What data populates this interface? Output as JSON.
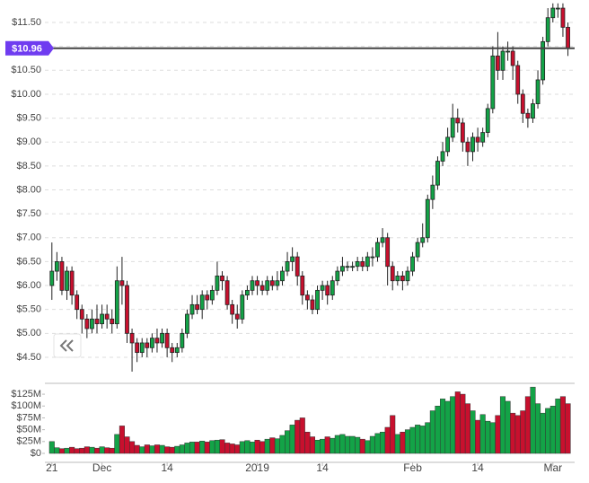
{
  "chart_data": [
    {
      "type": "candlestick",
      "up_color": "#13a347",
      "down_color": "#c8102e",
      "grid": true,
      "ylim": [
        4.18,
        11.97
      ],
      "yticks": [
        {
          "value": 4.5,
          "label": "$4.50"
        },
        {
          "value": 5,
          "label": "$5.00"
        },
        {
          "value": 5.5,
          "label": "$5.50"
        },
        {
          "value": 6,
          "label": "$6.00"
        },
        {
          "value": 6.5,
          "label": "$6.50"
        },
        {
          "value": 7,
          "label": "$7.00"
        },
        {
          "value": 7.5,
          "label": "$7.50"
        },
        {
          "value": 8,
          "label": "$8.00"
        },
        {
          "value": 8.5,
          "label": "$8.50"
        },
        {
          "value": 9,
          "label": "$9.00"
        },
        {
          "value": 9.5,
          "label": "$9.50"
        },
        {
          "value": 10,
          "label": "$10.00"
        },
        {
          "value": 10.5,
          "label": "$10.50"
        },
        {
          "value": 11,
          "label": "$11.00"
        },
        {
          "value": 11.5,
          "label": "$11.50"
        }
      ],
      "last_price": {
        "value": 10.96,
        "label": "$10.96"
      },
      "open": [
        6.0,
        6.3,
        6.5,
        5.9,
        6.3,
        5.8,
        5.5,
        5.3,
        5.1,
        5.3,
        5.2,
        5.4,
        5.3,
        5.2,
        6.1,
        6.0,
        5.0,
        4.8,
        4.6,
        4.8,
        4.7,
        4.9,
        4.8,
        5.0,
        4.7,
        4.6,
        4.7,
        5.0,
        5.4,
        5.6,
        5.5,
        5.8,
        5.7,
        5.9,
        6.2,
        6.1,
        5.6,
        5.4,
        5.3,
        5.8,
        5.9,
        6.1,
        6.0,
        5.9,
        6.1,
        6.0,
        6.1,
        6.3,
        6.5,
        6.6,
        6.2,
        5.8,
        5.7,
        5.5,
        5.9,
        6.0,
        5.8,
        6.1,
        6.3,
        6.4,
        6.4,
        6.4,
        6.5,
        6.4,
        6.6,
        6.6,
        6.9,
        7.0,
        6.4,
        6.1,
        6.2,
        6.1,
        6.3,
        6.6,
        6.9,
        7.0,
        7.8,
        8.1,
        8.6,
        8.8,
        9.1,
        9.5,
        9.4,
        9.0,
        8.8,
        9.1,
        9.0,
        9.2,
        9.7,
        10.8,
        10.5,
        10.9,
        10.9,
        10.6,
        10.0,
        9.6,
        9.5,
        9.8,
        10.3,
        11.1,
        11.6,
        11.8,
        11.8,
        11.4
      ],
      "high": [
        6.9,
        6.7,
        6.6,
        6.4,
        6.4,
        5.9,
        5.6,
        5.4,
        5.5,
        5.6,
        5.6,
        5.6,
        5.5,
        6.4,
        6.6,
        6.1,
        5.1,
        4.9,
        4.9,
        4.9,
        5.0,
        5.1,
        5.1,
        5.1,
        4.8,
        4.8,
        5.1,
        5.5,
        5.8,
        5.8,
        5.9,
        5.9,
        6.0,
        6.5,
        6.3,
        6.2,
        5.7,
        5.6,
        5.9,
        6.0,
        6.2,
        6.2,
        6.1,
        6.2,
        6.2,
        6.3,
        6.4,
        6.7,
        6.8,
        6.7,
        6.3,
        5.9,
        5.8,
        6.0,
        6.1,
        6.1,
        6.2,
        6.4,
        6.6,
        6.5,
        6.5,
        6.6,
        6.6,
        6.7,
        6.8,
        7.0,
        7.2,
        7.1,
        6.5,
        6.3,
        6.3,
        6.4,
        6.7,
        7.0,
        7.3,
        7.9,
        8.3,
        8.7,
        9.0,
        9.3,
        9.8,
        9.7,
        9.5,
        9.1,
        9.2,
        9.3,
        9.3,
        9.8,
        11.0,
        11.3,
        11.0,
        11.1,
        11.0,
        10.7,
        10.1,
        9.7,
        9.9,
        10.5,
        11.2,
        11.8,
        11.9,
        11.9,
        11.9,
        11.5
      ],
      "low": [
        5.7,
        6.1,
        5.8,
        5.7,
        5.6,
        5.3,
        5.0,
        4.9,
        5.0,
        5.0,
        5.1,
        5.1,
        5.0,
        5.1,
        5.6,
        4.8,
        4.2,
        4.4,
        4.5,
        4.5,
        4.6,
        4.6,
        4.7,
        4.5,
        4.4,
        4.5,
        4.6,
        4.9,
        5.3,
        5.4,
        5.3,
        5.5,
        5.6,
        5.8,
        5.9,
        5.5,
        5.2,
        5.1,
        5.2,
        5.7,
        5.8,
        5.8,
        5.8,
        5.8,
        5.9,
        5.9,
        6.0,
        6.2,
        6.3,
        6.0,
        5.6,
        5.5,
        5.4,
        5.4,
        5.7,
        5.6,
        5.7,
        6.0,
        6.2,
        6.3,
        6.3,
        6.3,
        6.3,
        6.3,
        6.4,
        6.5,
        6.8,
        6.0,
        5.9,
        6.0,
        5.9,
        6.0,
        6.2,
        6.5,
        6.8,
        6.9,
        7.6,
        8.0,
        8.5,
        8.7,
        9.0,
        9.2,
        8.8,
        8.5,
        8.6,
        8.8,
        8.9,
        9.1,
        9.6,
        10.3,
        10.3,
        10.7,
        10.3,
        9.8,
        9.4,
        9.3,
        9.4,
        9.7,
        10.2,
        11.0,
        11.5,
        11.6,
        11.2,
        10.8
      ],
      "close": [
        6.3,
        6.5,
        5.9,
        6.3,
        5.8,
        5.5,
        5.3,
        5.1,
        5.3,
        5.2,
        5.4,
        5.3,
        5.2,
        6.1,
        6.0,
        5.0,
        4.8,
        4.6,
        4.8,
        4.7,
        4.9,
        4.8,
        5.0,
        4.7,
        4.6,
        4.7,
        5.0,
        5.4,
        5.6,
        5.5,
        5.8,
        5.7,
        5.9,
        6.2,
        6.1,
        5.6,
        5.4,
        5.3,
        5.8,
        5.9,
        6.1,
        6.0,
        5.9,
        6.1,
        6.0,
        6.1,
        6.3,
        6.5,
        6.6,
        6.2,
        5.8,
        5.7,
        5.5,
        5.9,
        6.0,
        5.8,
        6.1,
        6.3,
        6.4,
        6.4,
        6.4,
        6.5,
        6.4,
        6.6,
        6.6,
        6.9,
        7.0,
        6.4,
        6.1,
        6.2,
        6.1,
        6.3,
        6.6,
        6.9,
        7.0,
        7.8,
        8.1,
        8.6,
        8.8,
        9.1,
        9.5,
        9.4,
        9.0,
        8.8,
        9.1,
        9.0,
        9.2,
        9.7,
        10.8,
        10.5,
        10.9,
        10.9,
        10.6,
        10.0,
        9.6,
        9.5,
        9.8,
        10.3,
        11.1,
        11.6,
        11.8,
        11.8,
        11.4,
        10.96
      ]
    },
    {
      "type": "bar",
      "ylim": [
        0,
        146
      ],
      "yticks": [
        {
          "value": 0,
          "label": "$0"
        },
        {
          "value": 25,
          "label": "$25M"
        },
        {
          "value": 50,
          "label": "$50M"
        },
        {
          "value": 75,
          "label": "$75M"
        },
        {
          "value": 100,
          "label": "$100M"
        },
        {
          "value": 125,
          "label": "$125M"
        }
      ],
      "categories": [
        "21",
        null,
        null,
        null,
        null,
        null,
        null,
        null,
        null,
        null,
        "Dec",
        null,
        null,
        null,
        null,
        null,
        null,
        null,
        null,
        null,
        null,
        null,
        null,
        "14",
        null,
        null,
        null,
        null,
        null,
        null,
        null,
        null,
        null,
        null,
        null,
        null,
        null,
        null,
        null,
        null,
        null,
        "2019",
        null,
        null,
        null,
        null,
        null,
        null,
        null,
        null,
        null,
        null,
        null,
        null,
        "14",
        null,
        null,
        null,
        null,
        null,
        null,
        null,
        null,
        null,
        null,
        null,
        null,
        null,
        null,
        null,
        null,
        null,
        "Feb",
        null,
        null,
        null,
        null,
        null,
        null,
        null,
        null,
        null,
        null,
        null,
        null,
        "14",
        null,
        null,
        null,
        null,
        null,
        null,
        null,
        null,
        null,
        null,
        null,
        null,
        null,
        null,
        "Mar",
        null,
        null,
        null
      ],
      "values": [
        25,
        12,
        10,
        11,
        13,
        10,
        11,
        14,
        13,
        11,
        14,
        12,
        11,
        40,
        58,
        35,
        25,
        17,
        14,
        18,
        16,
        18,
        17,
        14,
        13,
        15,
        18,
        22,
        24,
        24,
        26,
        24,
        27,
        28,
        29,
        22,
        20,
        18,
        25,
        27,
        24,
        28,
        25,
        30,
        33,
        31,
        38,
        48,
        60,
        70,
        75,
        45,
        35,
        28,
        30,
        35,
        32,
        38,
        40,
        36,
        36,
        34,
        30,
        27,
        36,
        42,
        45,
        55,
        80,
        40,
        45,
        50,
        55,
        60,
        58,
        65,
        90,
        100,
        115,
        110,
        120,
        130,
        125,
        105,
        90,
        70,
        82,
        68,
        65,
        80,
        120,
        110,
        85,
        80,
        90,
        120,
        140,
        105,
        85,
        95,
        100,
        115,
        120,
        105
      ]
    }
  ]
}
